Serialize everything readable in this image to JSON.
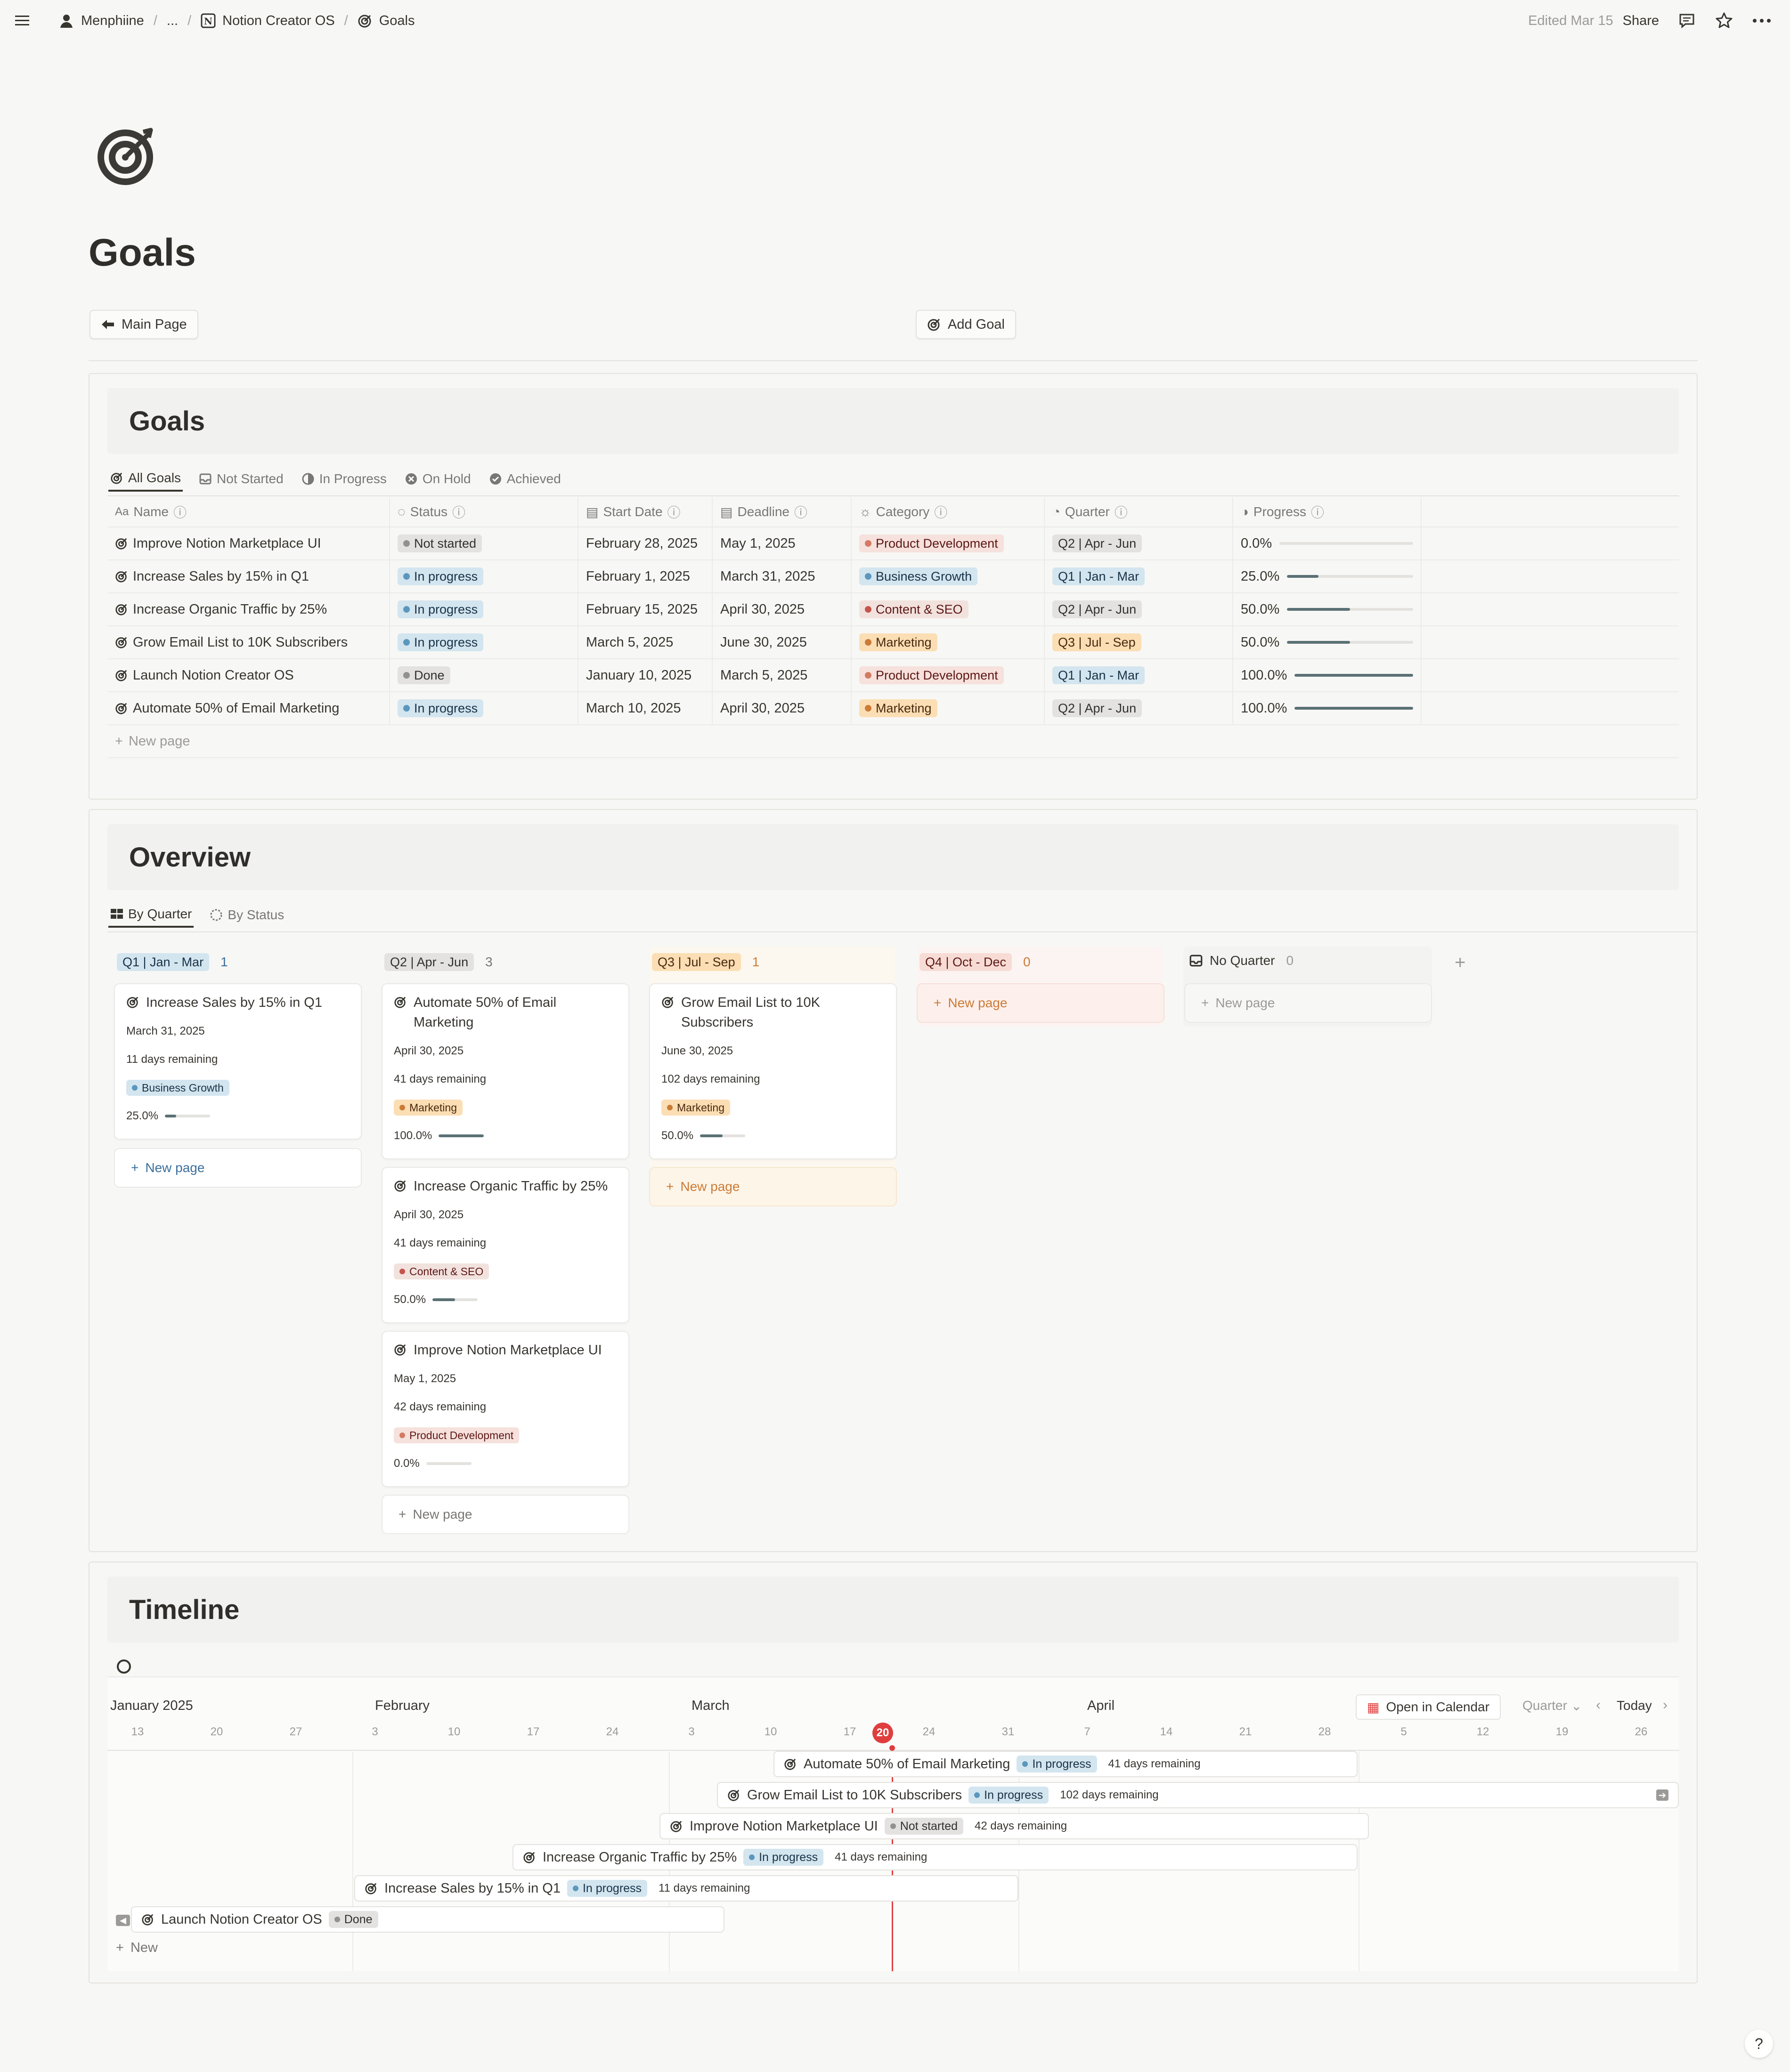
{
  "breadcrumb": {
    "workspace": "Menphiine",
    "ellipsis": "...",
    "parent": "Notion Creator OS",
    "current": "Goals"
  },
  "topbar": {
    "edited": "Edited Mar 15",
    "share": "Share"
  },
  "page": {
    "title": "Goals"
  },
  "buttons": {
    "main_page": "Main Page",
    "add_goal": "Add Goal"
  },
  "goals_db": {
    "title": "Goals",
    "tabs": [
      "All Goals",
      "Not Started",
      "In Progress",
      "On Hold",
      "Achieved"
    ],
    "columns": {
      "name": "Name",
      "status": "Status",
      "start": "Start Date",
      "deadline": "Deadline",
      "category": "Category",
      "quarter": "Quarter",
      "progress": "Progress"
    },
    "rows": [
      {
        "name": "Improve Notion Marketplace UI",
        "status": "Not started",
        "start": "February 28, 2025",
        "deadline": "May 1, 2025",
        "category": "Product Development",
        "quarter": "Q2 | Apr - Jun",
        "progress": "0.0%",
        "pct": 0
      },
      {
        "name": "Increase Sales by 15% in Q1",
        "status": "In progress",
        "start": "February 1, 2025",
        "deadline": "March 31, 2025",
        "category": "Business Growth",
        "quarter": "Q1 | Jan - Mar",
        "progress": "25.0%",
        "pct": 25
      },
      {
        "name": "Increase Organic Traffic by 25%",
        "status": "In progress",
        "start": "February 15, 2025",
        "deadline": "April 30, 2025",
        "category": "Content & SEO",
        "quarter": "Q2 | Apr - Jun",
        "progress": "50.0%",
        "pct": 50
      },
      {
        "name": "Grow Email List to 10K Subscribers",
        "status": "In progress",
        "start": "March 5, 2025",
        "deadline": "June 30, 2025",
        "category": "Marketing",
        "quarter": "Q3 | Jul - Sep",
        "progress": "50.0%",
        "pct": 50
      },
      {
        "name": "Launch Notion Creator OS",
        "status": "Done",
        "start": "January 10, 2025",
        "deadline": "March 5, 2025",
        "category": "Product Development",
        "quarter": "Q1 | Jan - Mar",
        "progress": "100.0%",
        "pct": 100
      },
      {
        "name": "Automate 50% of Email Marketing",
        "status": "In progress",
        "start": "March 10, 2025",
        "deadline": "April 30, 2025",
        "category": "Marketing",
        "quarter": "Q2 | Apr - Jun",
        "progress": "100.0%",
        "pct": 100
      }
    ],
    "new_page": "New page"
  },
  "overview": {
    "title": "Overview",
    "tabs": [
      "By Quarter",
      "By Status"
    ],
    "columns": [
      {
        "label": "Q1 | Jan - Mar",
        "count": "1"
      },
      {
        "label": "Q2 | Apr - Jun",
        "count": "3"
      },
      {
        "label": "Q3 | Jul - Sep",
        "count": "1"
      },
      {
        "label": "Q4 | Oct - Dec",
        "count": "0"
      },
      {
        "label": "No Quarter",
        "count": "0"
      }
    ],
    "cards": [
      {
        "title": "Increase Sales by 15% in Q1",
        "date": "March 31, 2025",
        "remaining": "11 days remaining",
        "category": "Business Growth",
        "progress": "25.0%",
        "pct": 25
      },
      {
        "title": "Automate 50% of Email Marketing",
        "date": "April 30, 2025",
        "remaining": "41 days remaining",
        "category": "Marketing",
        "progress": "100.0%",
        "pct": 100
      },
      {
        "title": "Increase Organic Traffic by 25%",
        "date": "April 30, 2025",
        "remaining": "41 days remaining",
        "category": "Content & SEO",
        "progress": "50.0%",
        "pct": 50
      },
      {
        "title": "Improve Notion Marketplace UI",
        "date": "May 1, 2025",
        "remaining": "42 days remaining",
        "category": "Product Development",
        "progress": "0.0%",
        "pct": 0
      },
      {
        "title": "Grow Email List to 10K Subscribers",
        "date": "June 30, 2025",
        "remaining": "102 days remaining",
        "category": "Marketing",
        "progress": "50.0%",
        "pct": 50
      }
    ],
    "new_page": "New page"
  },
  "timeline": {
    "title": "Timeline",
    "months": [
      "January 2025",
      "February",
      "March",
      "April"
    ],
    "days": [
      "13",
      "20",
      "27",
      "3",
      "10",
      "17",
      "24",
      "3",
      "10",
      "17",
      "20",
      "24",
      "31",
      "7",
      "14",
      "21",
      "28",
      "5",
      "12",
      "19",
      "26"
    ],
    "today_label": "20",
    "open_calendar": "Open in Calendar",
    "scale": "Quarter",
    "today": "Today",
    "items": [
      {
        "name": "Automate 50% of Email Marketing",
        "status": "In progress",
        "remaining": "41 days remaining"
      },
      {
        "name": "Grow Email List to 10K Subscribers",
        "status": "In progress",
        "remaining": "102 days remaining"
      },
      {
        "name": "Improve Notion Marketplace UI",
        "status": "Not started",
        "remaining": "42 days remaining"
      },
      {
        "name": "Increase Organic Traffic by 25%",
        "status": "In progress",
        "remaining": "41 days remaining"
      },
      {
        "name": "Increase Sales by 15% in Q1",
        "status": "In progress",
        "remaining": "11 days remaining"
      },
      {
        "name": "Launch Notion Creator OS",
        "status": "Done",
        "remaining": ""
      }
    ],
    "new": "New"
  },
  "colors": {
    "status_not_started": "#e3e2e0",
    "status_in_progress": "#d3e5ef",
    "status_done": "#e3e2e0",
    "cat_product": "#fbe4e4",
    "cat_business": "#d3e5ef",
    "cat_content": "#f6e1dc",
    "cat_marketing": "#fbdeb4",
    "q1": "#d3e5ef",
    "q2": "#e3e2e0",
    "q3": "#fbdeb4",
    "q4": "#fbe4e4",
    "today": "#e03e3e",
    "progress_fill": "#5a7075"
  },
  "icons": [
    "menu-icon",
    "user-avatar-icon",
    "notion-icon",
    "target-icon",
    "comment-icon",
    "star-icon",
    "more-icon",
    "arrow-left-icon",
    "plus-icon",
    "calendar-icon",
    "info-icon",
    "help-icon"
  ]
}
